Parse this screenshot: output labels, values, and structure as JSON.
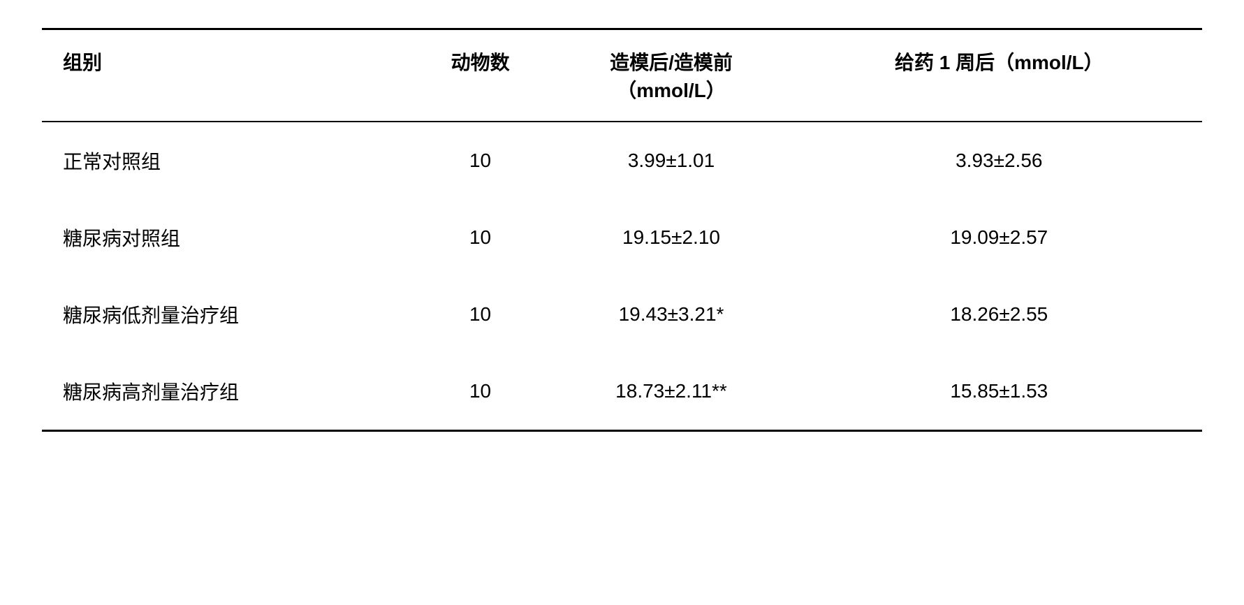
{
  "table": {
    "columns": [
      "组别",
      "动物数",
      "造模后/造模前",
      "给药 1 周后（mmol/L）"
    ],
    "column3_unit": "（mmol/L）",
    "rows": [
      [
        "正常对照组",
        "10",
        "3.99±1.01",
        "3.93±2.56"
      ],
      [
        "糖尿病对照组",
        "10",
        "19.15±2.10",
        "19.09±2.57"
      ],
      [
        "糖尿病低剂量治疗组",
        "10",
        "19.43±3.21*",
        "18.26±2.55"
      ],
      [
        "糖尿病高剂量治疗组",
        "10",
        "18.73±2.11**",
        "15.85±1.53"
      ]
    ],
    "colors": {
      "background": "#ffffff",
      "text": "#000000",
      "border": "#000000"
    },
    "font_size": 28,
    "header_font_weight": "bold"
  }
}
